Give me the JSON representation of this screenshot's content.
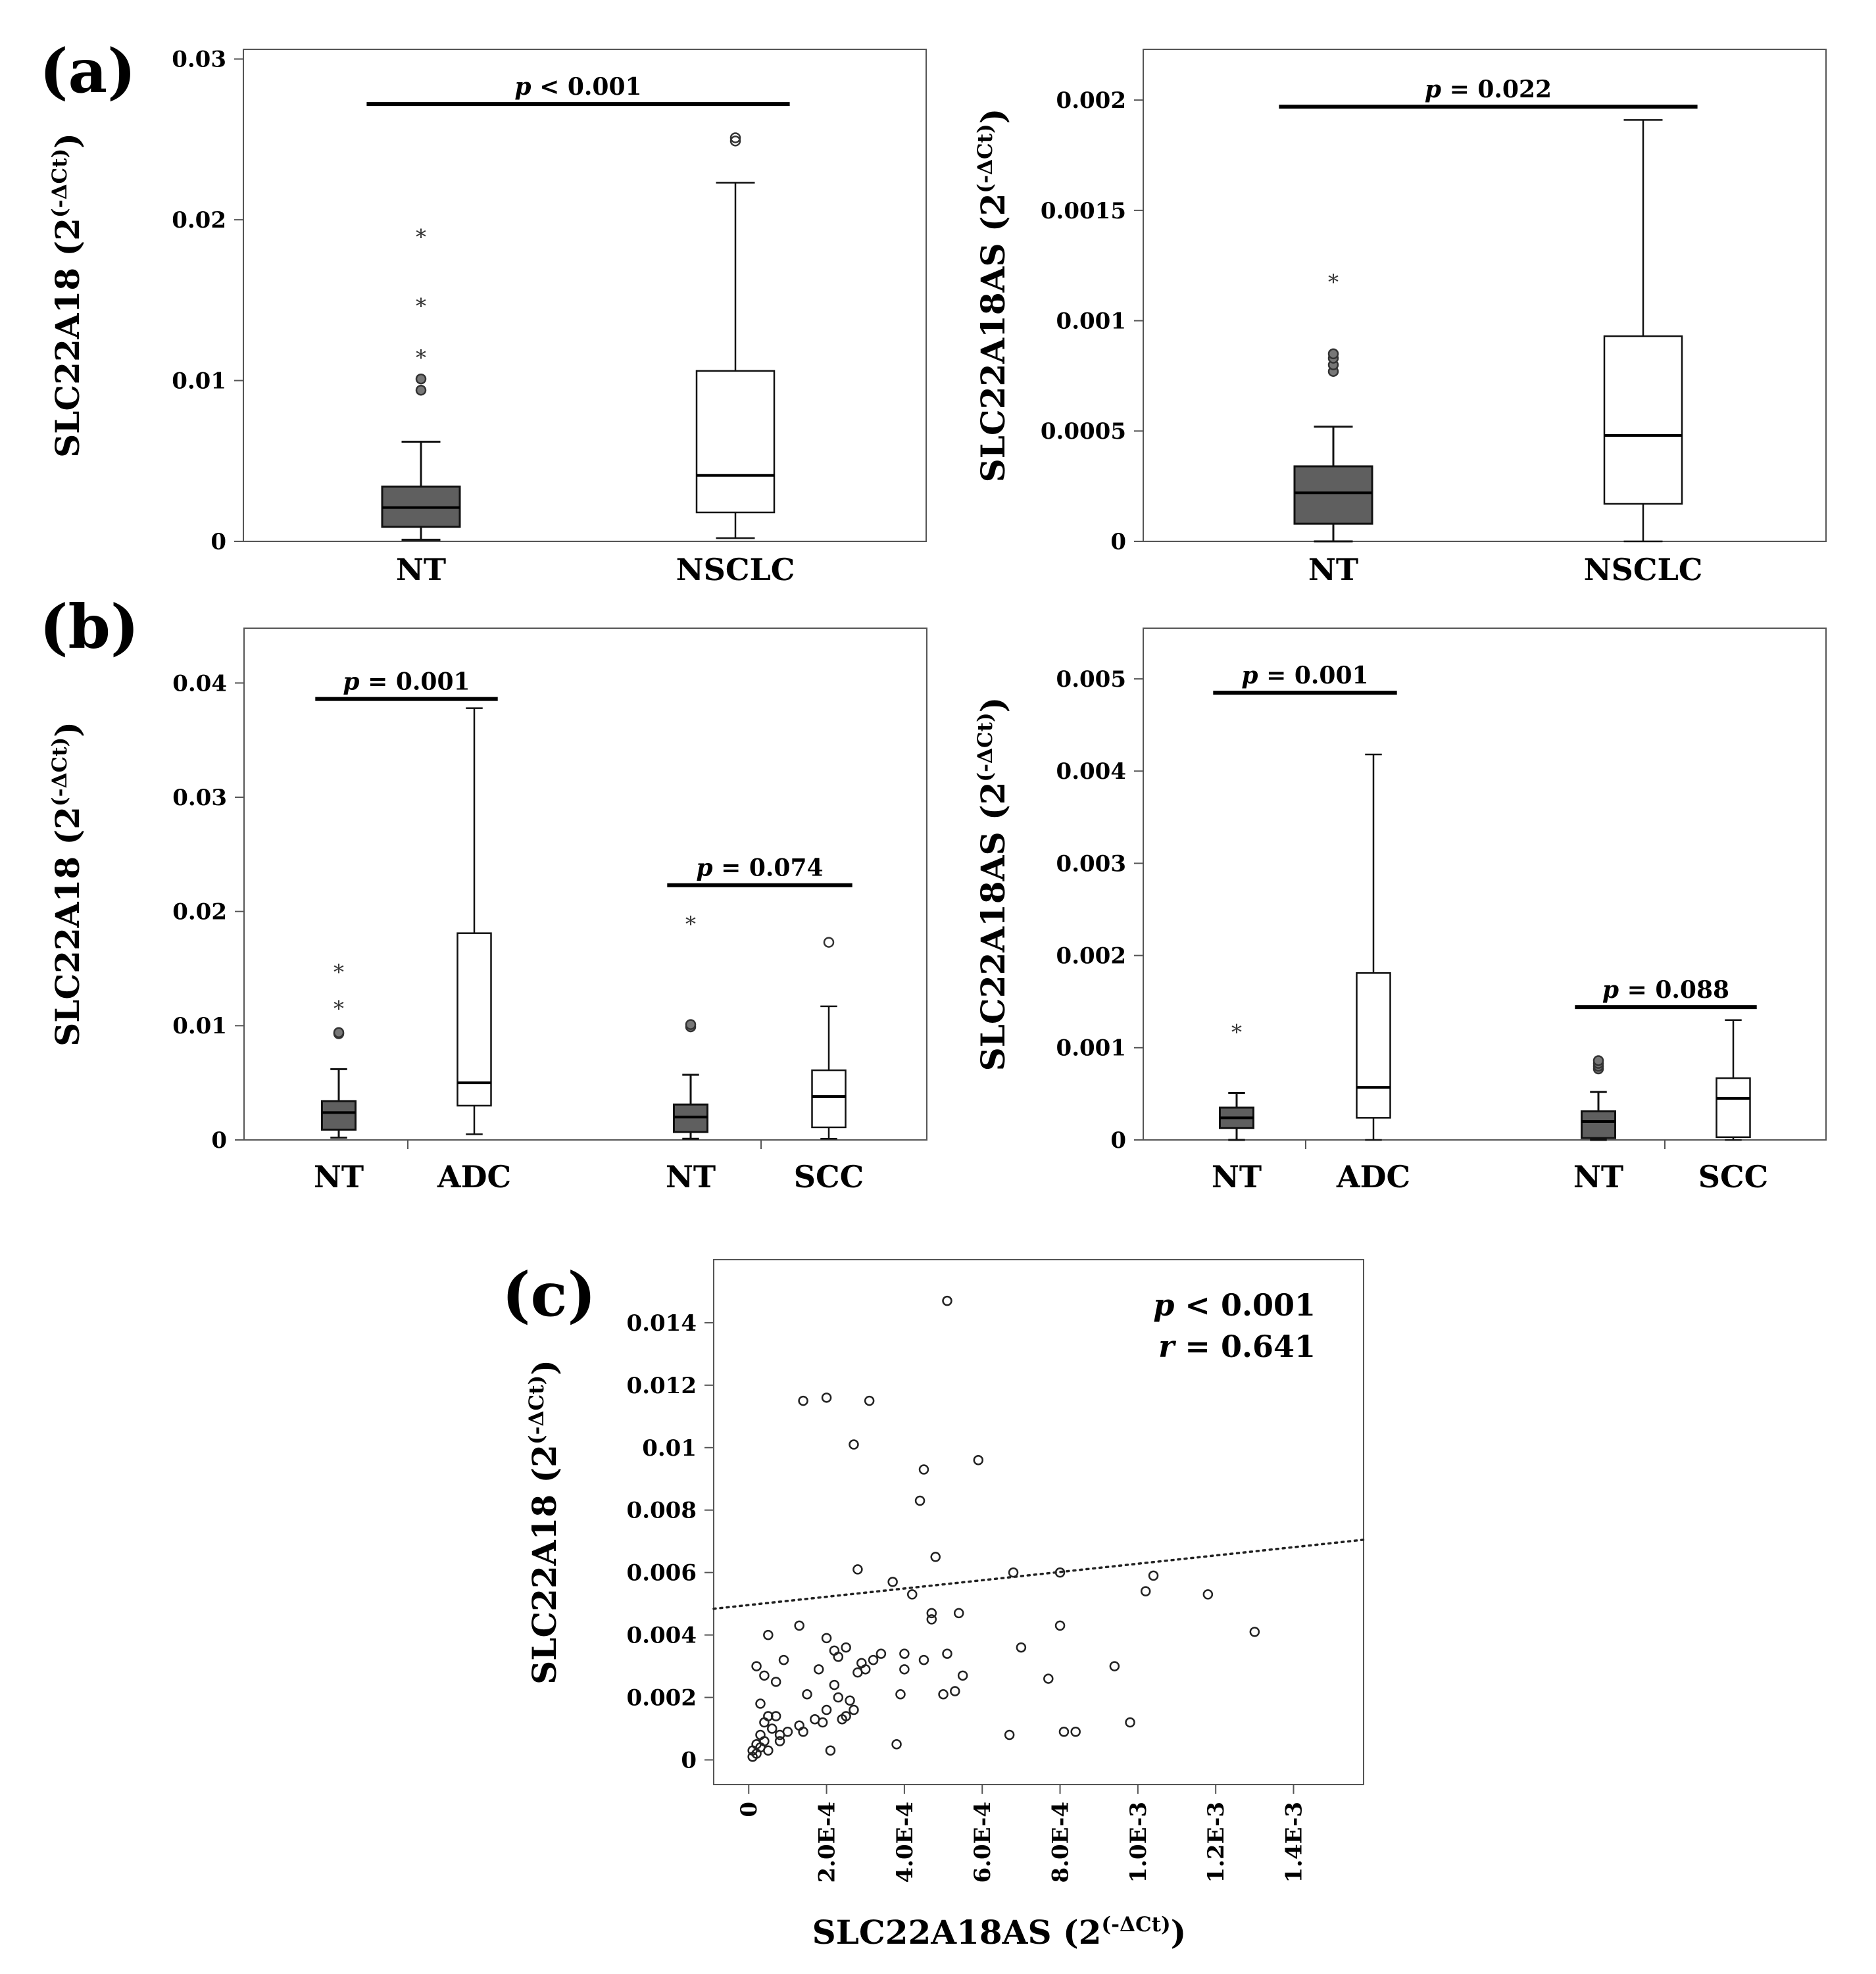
{
  "figure": {
    "panel_labels": [
      "(a)",
      "(b)",
      "(c)"
    ]
  },
  "chart_data": [
    {
      "id": "a-left",
      "type": "boxplot",
      "panel": "(a)",
      "ylabel": "SLC22A18 (2",
      "ylabel_sup": "(-ΔCt)",
      "ylabel_close": ")",
      "ylim": [
        0,
        0.0306
      ],
      "yticks": [
        0,
        0.01,
        0.02,
        0.03
      ],
      "ytick_labels": [
        "0",
        "0.01",
        "0.02",
        "0.03"
      ],
      "categories": [
        "NT",
        "NSCLC"
      ],
      "colors": [
        "#5f5f5f",
        "#ffffff"
      ],
      "boxes": [
        {
          "whislo": 0.0001,
          "q1": 0.0009,
          "med": 0.0021,
          "q3": 0.0034,
          "whishi": 0.0062,
          "outliers": [
            {
              "v": 0.0094,
              "m": "o"
            },
            {
              "v": 0.0101,
              "m": "o"
            },
            {
              "v": 0.0115,
              "m": "*"
            },
            {
              "v": 0.0147,
              "m": "*"
            },
            {
              "v": 0.019,
              "m": "*"
            }
          ]
        },
        {
          "whislo": 0.0002,
          "q1": 0.0018,
          "med": 0.0041,
          "q3": 0.0106,
          "whishi": 0.0223,
          "outliers": [
            {
              "v": 0.0249,
              "m": "o"
            },
            {
              "v": 0.0251,
              "m": "o"
            }
          ]
        }
      ],
      "brackets": [
        {
          "from": 0,
          "to": 1,
          "y": 0.0272,
          "p_prefix": "p",
          "p_text": "< 0.001"
        }
      ]
    },
    {
      "id": "a-right",
      "type": "boxplot",
      "panel": "(a)",
      "ylabel": "SLC22A18AS (2",
      "ylabel_sup": "(-ΔCt)",
      "ylabel_close": ")",
      "ylim": [
        0,
        0.00223
      ],
      "yticks": [
        0,
        0.0005,
        0.001,
        0.0015,
        0.002
      ],
      "ytick_labels": [
        "0",
        "0.0005",
        "0.001",
        "0.0015",
        "0.002"
      ],
      "categories": [
        "NT",
        "NSCLC"
      ],
      "colors": [
        "#5f5f5f",
        "#ffffff"
      ],
      "boxes": [
        {
          "whislo": 0.0,
          "q1": 8e-05,
          "med": 0.00022,
          "q3": 0.00034,
          "whishi": 0.00052,
          "outliers": [
            {
              "v": 0.00077,
              "m": "o"
            },
            {
              "v": 0.0008,
              "m": "o"
            },
            {
              "v": 0.00083,
              "m": "o"
            },
            {
              "v": 0.00085,
              "m": "o"
            },
            {
              "v": 0.00118,
              "m": "*"
            }
          ]
        },
        {
          "whislo": 0.0,
          "q1": 0.00017,
          "med": 0.00048,
          "q3": 0.00093,
          "whishi": 0.00191,
          "outliers": []
        }
      ],
      "brackets": [
        {
          "from": 0,
          "to": 1,
          "y": 0.00197,
          "p_prefix": "p",
          "p_text": "= 0.022"
        }
      ]
    },
    {
      "id": "b-left",
      "type": "boxplot",
      "panel": "(b)",
      "ylabel": "SLC22A18 (2",
      "ylabel_sup": "(-ΔCt)",
      "ylabel_close": ")",
      "ylim": [
        0,
        0.0448
      ],
      "yticks": [
        0,
        0.01,
        0.02,
        0.03,
        0.04
      ],
      "ytick_labels": [
        "0",
        "0.01",
        "0.02",
        "0.03",
        "0.04"
      ],
      "categories": [
        "NT",
        "ADC",
        "NT",
        "SCC"
      ],
      "colors": [
        "#5f5f5f",
        "#ffffff",
        "#5f5f5f",
        "#ffffff"
      ],
      "boxes": [
        {
          "whislo": 0.0002,
          "q1": 0.0009,
          "med": 0.0024,
          "q3": 0.0034,
          "whishi": 0.0062,
          "outliers": [
            {
              "v": 0.0093,
              "m": "o"
            },
            {
              "v": 0.0094,
              "m": "o"
            },
            {
              "v": 0.0116,
              "m": "*"
            },
            {
              "v": 0.0148,
              "m": "*"
            }
          ]
        },
        {
          "whislo": 0.0005,
          "q1": 0.003,
          "med": 0.005,
          "q3": 0.0181,
          "whishi": 0.0378,
          "outliers": []
        },
        {
          "whislo": 0.0001,
          "q1": 0.0007,
          "med": 0.002,
          "q3": 0.0031,
          "whishi": 0.0057,
          "outliers": [
            {
              "v": 0.0099,
              "m": "o"
            },
            {
              "v": 0.0101,
              "m": "o"
            },
            {
              "v": 0.019,
              "m": "*"
            }
          ]
        },
        {
          "whislo": 0.0001,
          "q1": 0.0011,
          "med": 0.0038,
          "q3": 0.0061,
          "whishi": 0.0117,
          "outliers": [
            {
              "v": 0.0173,
              "m": "o"
            }
          ]
        }
      ],
      "brackets": [
        {
          "from": 0,
          "to": 1,
          "y": 0.0386,
          "p_prefix": "p",
          "p_text": "= 0.001"
        },
        {
          "from": 2,
          "to": 3,
          "y": 0.0223,
          "p_prefix": "p",
          "p_text": "= 0.074"
        }
      ]
    },
    {
      "id": "b-right",
      "type": "boxplot",
      "panel": "(b)",
      "ylabel": "SLC22A18AS (2",
      "ylabel_sup": "(-ΔCt)",
      "ylabel_close": ")",
      "ylim": [
        0,
        0.00555
      ],
      "yticks": [
        0,
        0.001,
        0.002,
        0.003,
        0.004,
        0.005
      ],
      "ytick_labels": [
        "0",
        "0.001",
        "0.002",
        "0.003",
        "0.004",
        "0.005"
      ],
      "categories": [
        "NT",
        "ADC",
        "NT",
        "SCC"
      ],
      "colors": [
        "#5f5f5f",
        "#ffffff",
        "#5f5f5f",
        "#ffffff"
      ],
      "boxes": [
        {
          "whislo": 0.0,
          "q1": 0.00013,
          "med": 0.00024,
          "q3": 0.00035,
          "whishi": 0.00051,
          "outliers": [
            {
              "v": 0.00118,
              "m": "*"
            }
          ]
        },
        {
          "whislo": 0.0,
          "q1": 0.00024,
          "med": 0.00057,
          "q3": 0.00181,
          "whishi": 0.00418,
          "outliers": []
        },
        {
          "whislo": 0.0,
          "q1": 2e-05,
          "med": 0.0002,
          "q3": 0.00031,
          "whishi": 0.00052,
          "outliers": [
            {
              "v": 0.00077,
              "m": "o"
            },
            {
              "v": 0.0008,
              "m": "o"
            },
            {
              "v": 0.00083,
              "m": "o"
            },
            {
              "v": 0.00086,
              "m": "o"
            }
          ]
        },
        {
          "whislo": 0.0,
          "q1": 3e-05,
          "med": 0.00045,
          "q3": 0.00067,
          "whishi": 0.0013,
          "outliers": []
        }
      ],
      "brackets": [
        {
          "from": 0,
          "to": 1,
          "y": 0.00485,
          "p_prefix": "p",
          "p_text": "= 0.001"
        },
        {
          "from": 2,
          "to": 3,
          "y": 0.00144,
          "p_prefix": "p",
          "p_text": "= 0.088"
        }
      ]
    },
    {
      "id": "c",
      "type": "scatter",
      "panel": "(c)",
      "xlabel": "SLC22A18AS (2",
      "xlabel_sup": "(-ΔCt)",
      "xlabel_close": ")",
      "ylabel": "SLC22A18 (2",
      "ylabel_sup": "(-ΔCt)",
      "ylabel_close": ")",
      "xlim": [
        -9e-05,
        0.00158
      ],
      "ylim": [
        -0.00079,
        0.01602
      ],
      "xticks": [
        0,
        0.0002,
        0.0004,
        0.0006,
        0.0008,
        0.001,
        0.0012,
        0.0014
      ],
      "xtick_labels": [
        "0",
        "2.0E-4",
        "4.0E-4",
        "6.0E-4",
        "8.0E-4",
        "1.0E-3",
        "1.2E-3",
        "1.4E-3"
      ],
      "yticks": [
        0,
        0.002,
        0.004,
        0.006,
        0.008,
        0.01,
        0.012,
        0.014
      ],
      "ytick_labels": [
        "0",
        "0.002",
        "0.004",
        "0.006",
        "0.008",
        "0.01",
        "0.012",
        "0.014"
      ],
      "annotation": {
        "p_prefix": "p",
        "p_text": "< 0.001",
        "r_prefix": "r",
        "r_text": "= 0.641"
      },
      "trendline": {
        "x": [
          -9e-05,
          0.00158
        ],
        "y": [
          0.00484,
          0.00705
        ]
      },
      "points": [
        [
          1e-05,
          0.0001
        ],
        [
          2e-05,
          0.0002
        ],
        [
          3e-05,
          0.0004
        ],
        [
          4e-05,
          0.0006
        ],
        [
          1e-05,
          0.0003
        ],
        [
          2e-05,
          0.0005
        ],
        [
          5e-05,
          0.0003
        ],
        [
          3e-05,
          0.0008
        ],
        [
          4e-05,
          0.0012
        ],
        [
          5e-05,
          0.0014
        ],
        [
          3e-05,
          0.0018
        ],
        [
          2e-05,
          0.003
        ],
        [
          4e-05,
          0.0027
        ],
        [
          7e-05,
          0.0025
        ],
        [
          5e-05,
          0.004
        ],
        [
          7e-05,
          0.0014
        ],
        [
          6e-05,
          0.001
        ],
        [
          8e-05,
          0.0008
        ],
        [
          0.0001,
          0.0009
        ],
        [
          8e-05,
          0.0006
        ],
        [
          9e-05,
          0.0032
        ],
        [
          0.00013,
          0.0011
        ],
        [
          0.00014,
          0.0009
        ],
        [
          0.00013,
          0.0043
        ],
        [
          0.00015,
          0.0021
        ],
        [
          0.00017,
          0.0013
        ],
        [
          0.00019,
          0.0012
        ],
        [
          0.0002,
          0.0016
        ],
        [
          0.00018,
          0.0029
        ],
        [
          0.0002,
          0.0039
        ],
        [
          0.00022,
          0.0035
        ],
        [
          0.00022,
          0.0024
        ],
        [
          0.00023,
          0.0033
        ],
        [
          0.00021,
          0.0003
        ],
        [
          0.00023,
          0.002
        ],
        [
          0.00025,
          0.0014
        ],
        [
          0.00024,
          0.0013
        ],
        [
          0.00026,
          0.0019
        ],
        [
          0.00027,
          0.0016
        ],
        [
          0.00028,
          0.0028
        ],
        [
          0.00029,
          0.0031
        ],
        [
          0.0003,
          0.0029
        ],
        [
          0.00032,
          0.0032
        ],
        [
          0.00034,
          0.0034
        ],
        [
          0.00025,
          0.0036
        ],
        [
          0.00037,
          0.0057
        ],
        [
          0.00038,
          0.0005
        ],
        [
          0.00039,
          0.0021
        ],
        [
          0.0004,
          0.0029
        ],
        [
          0.0004,
          0.0034
        ],
        [
          0.00042,
          0.0053
        ],
        [
          0.00044,
          0.0083
        ],
        [
          0.00045,
          0.0093
        ],
        [
          0.00045,
          0.0032
        ],
        [
          0.00047,
          0.0047
        ],
        [
          0.00047,
          0.0045
        ],
        [
          0.00048,
          0.0065
        ],
        [
          0.0005,
          0.0021
        ],
        [
          0.00051,
          0.0034
        ],
        [
          0.00053,
          0.0022
        ],
        [
          0.00054,
          0.0047
        ],
        [
          0.00055,
          0.0027
        ],
        [
          0.00014,
          0.0115
        ],
        [
          0.0002,
          0.0116
        ],
        [
          0.00031,
          0.0115
        ],
        [
          0.00027,
          0.0101
        ],
        [
          0.00028,
          0.0061
        ],
        [
          0.00059,
          0.0096
        ],
        [
          0.00051,
          0.0147
        ],
        [
          0.00067,
          0.0008
        ],
        [
          0.00068,
          0.006
        ],
        [
          0.0007,
          0.0036
        ],
        [
          0.00077,
          0.0026
        ],
        [
          0.0008,
          0.0043
        ],
        [
          0.00081,
          0.0009
        ],
        [
          0.00084,
          0.0009
        ],
        [
          0.0008,
          0.006
        ],
        [
          0.00094,
          0.003
        ],
        [
          0.00098,
          0.0012
        ],
        [
          0.00102,
          0.0054
        ],
        [
          0.00104,
          0.0059
        ],
        [
          0.00118,
          0.0053
        ],
        [
          0.0013,
          0.0041
        ]
      ]
    }
  ]
}
